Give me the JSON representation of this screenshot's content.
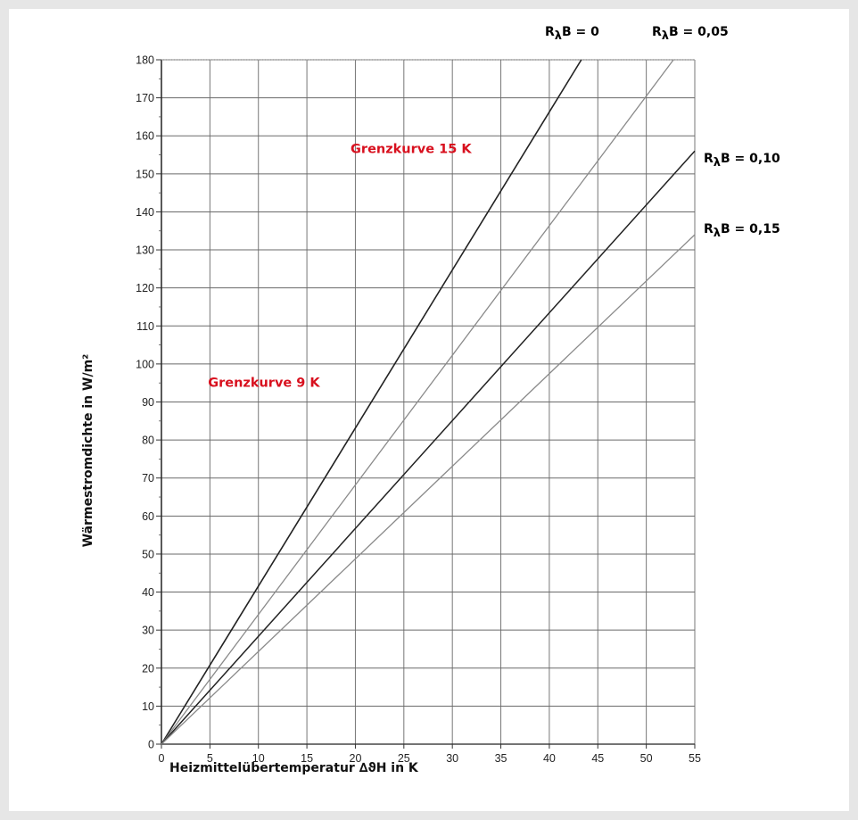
{
  "chart_data": {
    "type": "line",
    "title": "",
    "xlabel": "Heizmittelübertemperatur ∆ϑH in K",
    "ylabel": "Wärmestromdichte in W/m²",
    "xlim": [
      0,
      55
    ],
    "ylim": [
      0,
      180
    ],
    "x_ticks": [
      0,
      5,
      10,
      15,
      20,
      25,
      30,
      35,
      40,
      45,
      50,
      55
    ],
    "y_ticks": [
      0,
      10,
      20,
      30,
      40,
      50,
      60,
      70,
      80,
      90,
      100,
      110,
      120,
      130,
      140,
      150,
      160,
      170,
      180
    ],
    "grid": true,
    "series": [
      {
        "name": "R",
        "suffix": "B = 0",
        "x": [
          0,
          43.3
        ],
        "y": [
          0,
          180
        ],
        "color": "#222222",
        "width": 1.6
      },
      {
        "name": "R",
        "suffix": "B = 0,05",
        "x": [
          0,
          52.8
        ],
        "y": [
          0,
          180
        ],
        "color": "#8a8a8a",
        "width": 1.3
      },
      {
        "name": "R",
        "suffix": "B = 0,10",
        "x": [
          0,
          55
        ],
        "y": [
          0,
          156
        ],
        "color": "#222222",
        "width": 1.5
      },
      {
        "name": "R",
        "suffix": "B = 0,15",
        "x": [
          0,
          55
        ],
        "y": [
          0,
          134
        ],
        "color": "#8a8a8a",
        "width": 1.3
      }
    ],
    "annotations": [
      {
        "text": "Grenzkurve 15 K",
        "x": 19.5,
        "y": 155.5
      },
      {
        "text": "Grenzkurve 9 K",
        "x": 4.8,
        "y": 94
      }
    ],
    "lambda_symbol": "λ"
  }
}
